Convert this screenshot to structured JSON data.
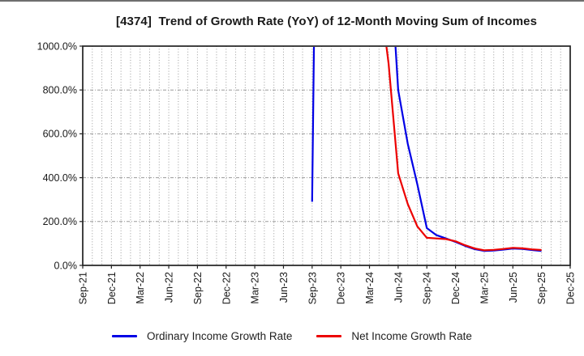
{
  "page": {
    "background": "#ffffff",
    "top_border_color": "#6e6e6e"
  },
  "chart_data": {
    "type": "line",
    "title": "[4374]  Trend of Growth Rate (YoY) of 12-Month Moving Sum of Incomes",
    "xlabel": "",
    "ylabel": "",
    "ylim": [
      0,
      1000
    ],
    "grid": {
      "vertical": "monthly-dotted",
      "horizontal": "at-y-ticks-dash-dot",
      "color": "#9a9a9a"
    },
    "legend_position": "bottom-center",
    "axis_color": "#222222",
    "tick_label_color": "#191919",
    "x_index_range": [
      0,
      51
    ],
    "x_tick_month_indices": [
      0,
      3,
      6,
      9,
      12,
      15,
      18,
      21,
      24,
      27,
      30,
      33,
      36,
      39,
      42,
      45,
      48,
      51
    ],
    "x_tick_labels": [
      "Sep-21",
      "Dec-21",
      "Mar-22",
      "Jun-22",
      "Sep-22",
      "Dec-22",
      "Mar-23",
      "Jun-23",
      "Sep-23",
      "Dec-23",
      "Mar-24",
      "Jun-24",
      "Sep-24",
      "Dec-24",
      "Mar-25",
      "Jun-25",
      "Sep-25",
      "Dec-25"
    ],
    "y_ticks": [
      {
        "value": 0,
        "label": "0.0%"
      },
      {
        "value": 200,
        "label": "200.0%"
      },
      {
        "value": 400,
        "label": "400.0%"
      },
      {
        "value": 600,
        "label": "600.0%"
      },
      {
        "value": 800,
        "label": "800.0%"
      },
      {
        "value": 1000,
        "label": "1000.0%"
      }
    ],
    "off_chart_note": "values above 1000% are clipped at the top of the plot",
    "series": [
      {
        "name": "Ordinary Income Growth Rate",
        "color": "#0000e6",
        "points": [
          [
            "Sep-23",
            24,
            290
          ],
          [
            "Oct-23",
            25,
            4000
          ],
          [
            "Nov-23",
            26,
            4000
          ],
          [
            "Dec-23",
            27,
            4000
          ],
          [
            "Jan-24",
            28,
            4000
          ],
          [
            "Feb-24",
            29,
            4000
          ],
          [
            "Mar-24",
            30,
            4000
          ],
          [
            "Apr-24",
            31,
            3000
          ],
          [
            "May-24",
            32,
            1510
          ],
          [
            "Jun-24",
            33,
            800
          ],
          [
            "Jul-24",
            34,
            555
          ],
          [
            "Aug-24",
            35,
            370
          ],
          [
            "Sep-24",
            36,
            170
          ],
          [
            "Oct-24",
            37,
            138
          ],
          [
            "Nov-24",
            38,
            123
          ],
          [
            "Dec-24",
            39,
            107
          ],
          [
            "Jan-25",
            40,
            89
          ],
          [
            "Feb-25",
            41,
            74
          ],
          [
            "Mar-25",
            42,
            66
          ],
          [
            "Apr-25",
            43,
            68
          ],
          [
            "May-25",
            44,
            72
          ],
          [
            "Jun-25",
            45,
            77
          ],
          [
            "Jul-25",
            46,
            75
          ],
          [
            "Aug-25",
            47,
            70
          ],
          [
            "Sep-25",
            48,
            66
          ]
        ]
      },
      {
        "name": "Net Income Growth Rate",
        "color": "#ec0000",
        "points": [
          [
            "Sep-23",
            24,
            4000
          ],
          [
            "Oct-23",
            25,
            4000
          ],
          [
            "Nov-23",
            26,
            4000
          ],
          [
            "Dec-23",
            27,
            4000
          ],
          [
            "Jan-24",
            28,
            4000
          ],
          [
            "Feb-24",
            29,
            4000
          ],
          [
            "Mar-24",
            30,
            4000
          ],
          [
            "Apr-24",
            31,
            1265
          ],
          [
            "May-24",
            32,
            920
          ],
          [
            "Jun-24",
            33,
            420
          ],
          [
            "Jul-24",
            34,
            280
          ],
          [
            "Aug-24",
            35,
            178
          ],
          [
            "Sep-24",
            36,
            126
          ],
          [
            "Oct-24",
            37,
            123
          ],
          [
            "Nov-24",
            38,
            120
          ],
          [
            "Dec-24",
            39,
            110
          ],
          [
            "Jan-25",
            40,
            92
          ],
          [
            "Feb-25",
            41,
            77
          ],
          [
            "Mar-25",
            42,
            69
          ],
          [
            "Apr-25",
            43,
            71
          ],
          [
            "May-25",
            44,
            75
          ],
          [
            "Jun-25",
            45,
            80
          ],
          [
            "Jul-25",
            46,
            78
          ],
          [
            "Aug-25",
            47,
            73
          ],
          [
            "Sep-25",
            48,
            70
          ]
        ]
      }
    ]
  }
}
